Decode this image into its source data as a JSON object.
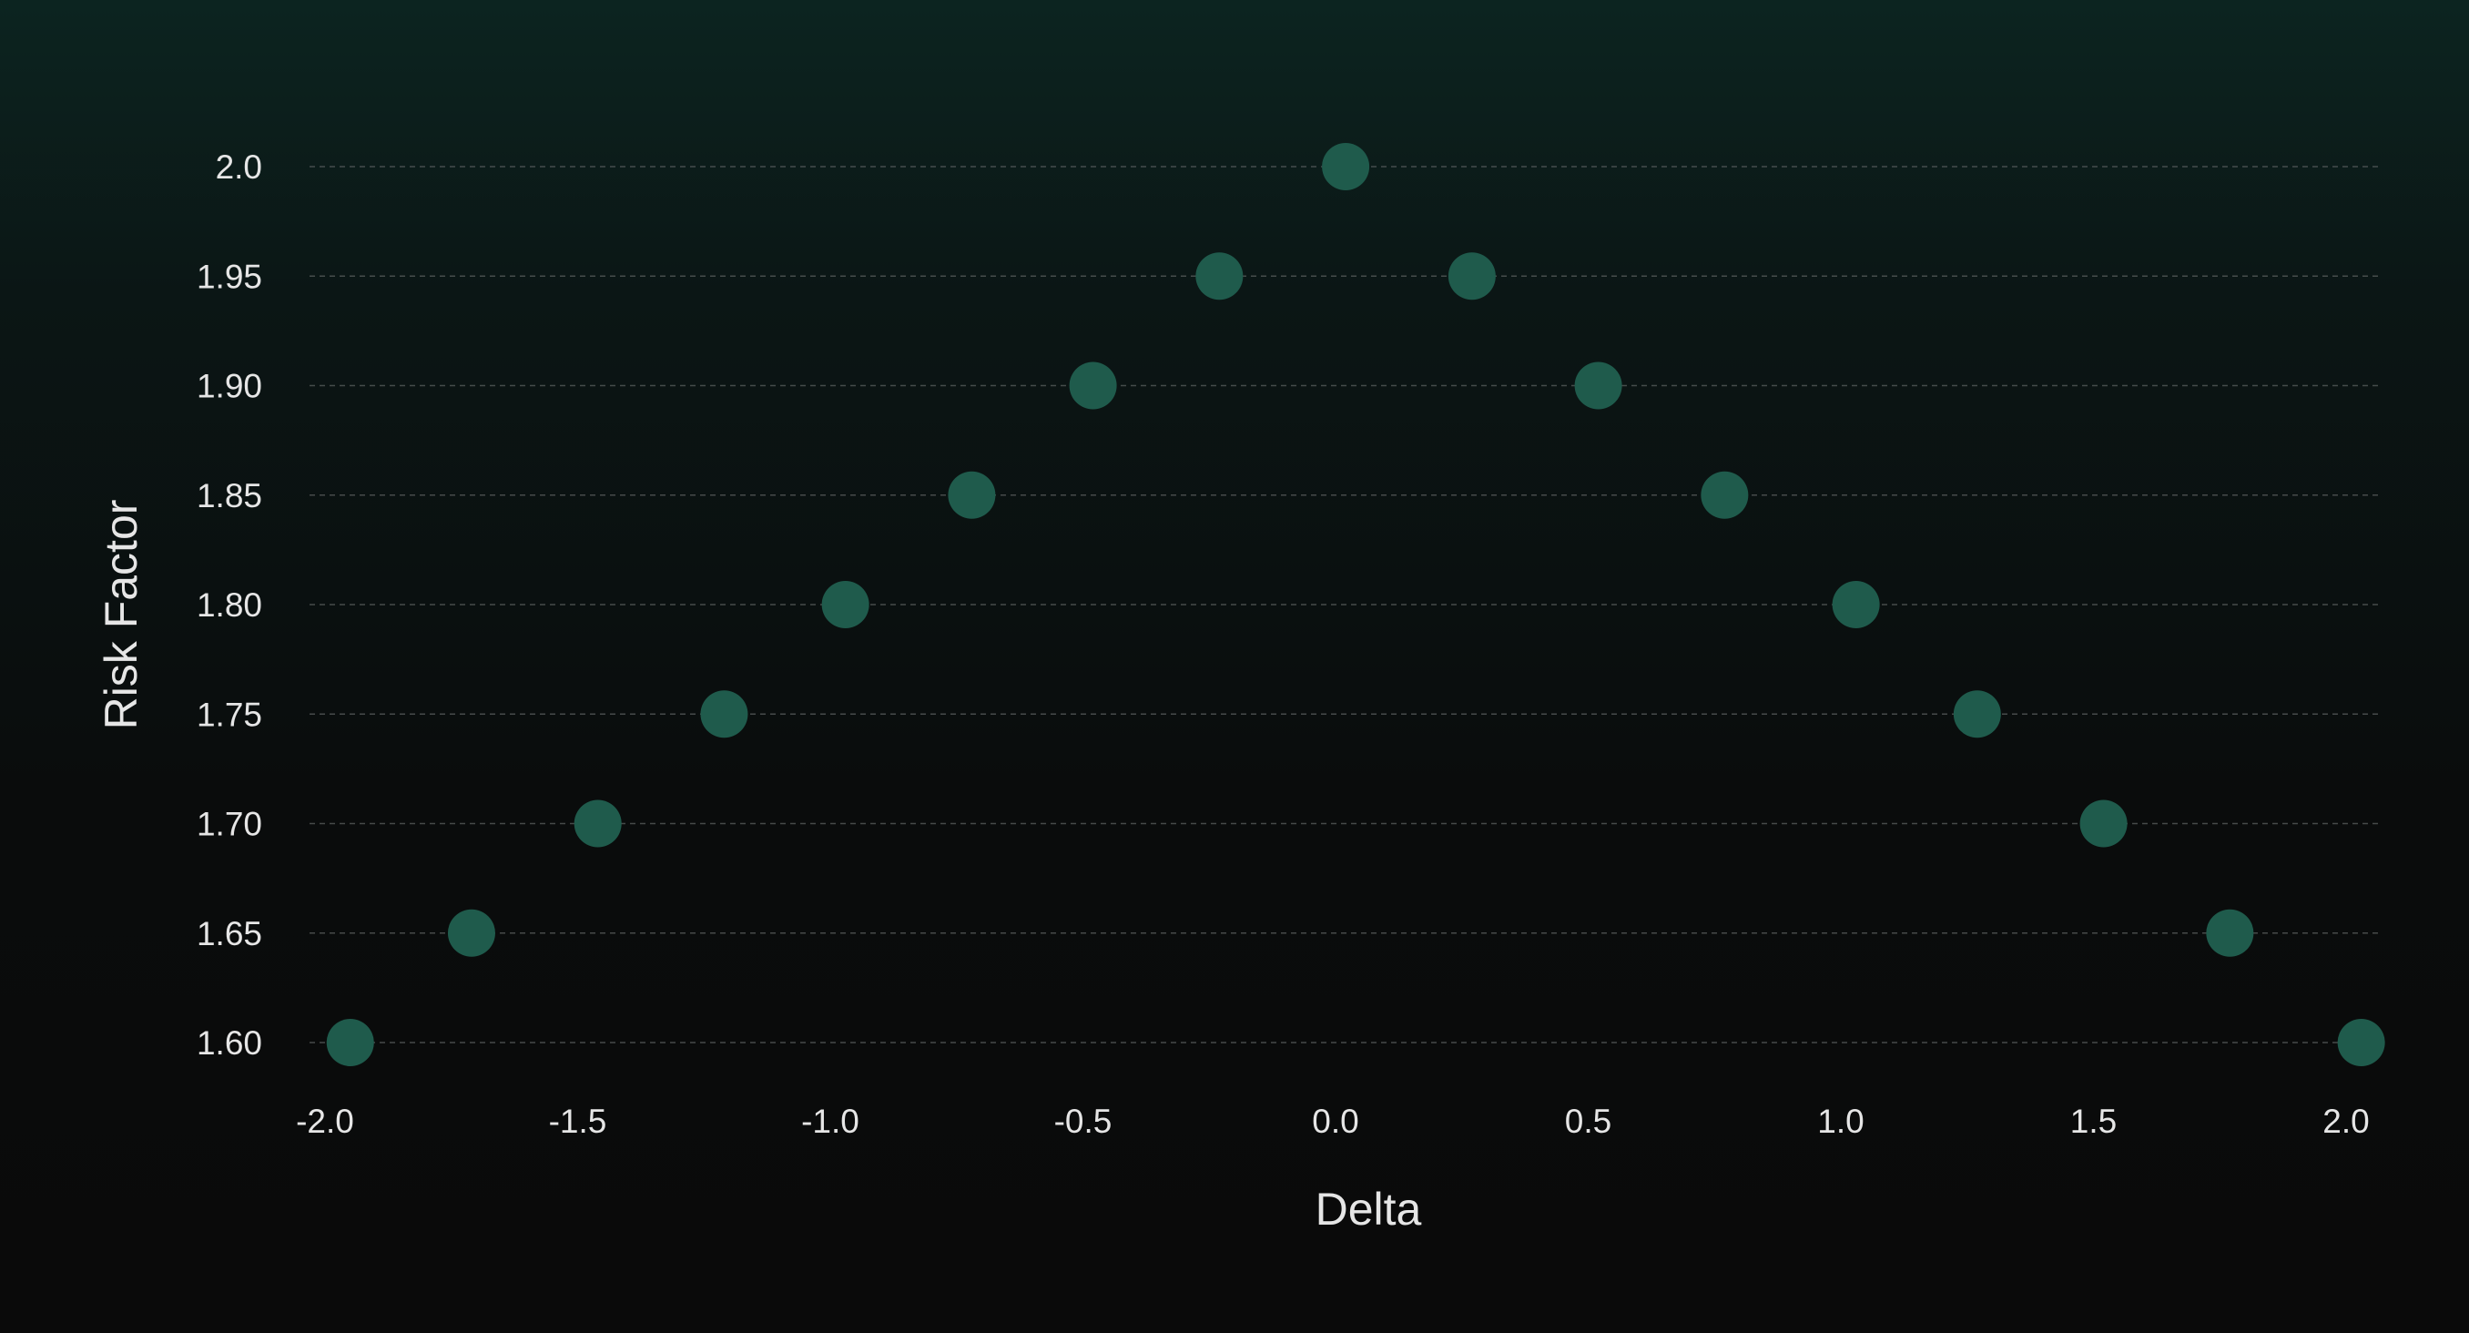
{
  "chart_data": {
    "type": "scatter",
    "title": "",
    "xlabel": "Delta",
    "ylabel": "Risk Factor",
    "xlim": [
      -2.0,
      2.0
    ],
    "ylim": [
      1.6,
      2.0
    ],
    "xticks": [
      "-2.0",
      "-1.5",
      "-1.0",
      "-0.5",
      "0.0",
      "0.5",
      "1.0",
      "1.5",
      "2.0"
    ],
    "yticks": [
      "1.60",
      "1.65",
      "1.70",
      "1.75",
      "1.80",
      "1.85",
      "1.90",
      "1.95",
      "2.0"
    ],
    "grid": "horizontal dashed",
    "marker_color": "#1f5b4c",
    "series": [
      {
        "x": [
          -1.95,
          -1.71,
          -1.46,
          -1.21,
          -0.97,
          -0.72,
          -0.48,
          -0.23,
          0.02,
          0.27,
          0.52,
          0.77,
          1.03,
          1.27,
          1.52,
          1.77,
          2.03
        ],
        "y": [
          1.6,
          1.65,
          1.7,
          1.75,
          1.8,
          1.85,
          1.9,
          1.95,
          2.0,
          1.95,
          1.9,
          1.85,
          1.8,
          1.75,
          1.7,
          1.65,
          1.6
        ]
      }
    ]
  }
}
